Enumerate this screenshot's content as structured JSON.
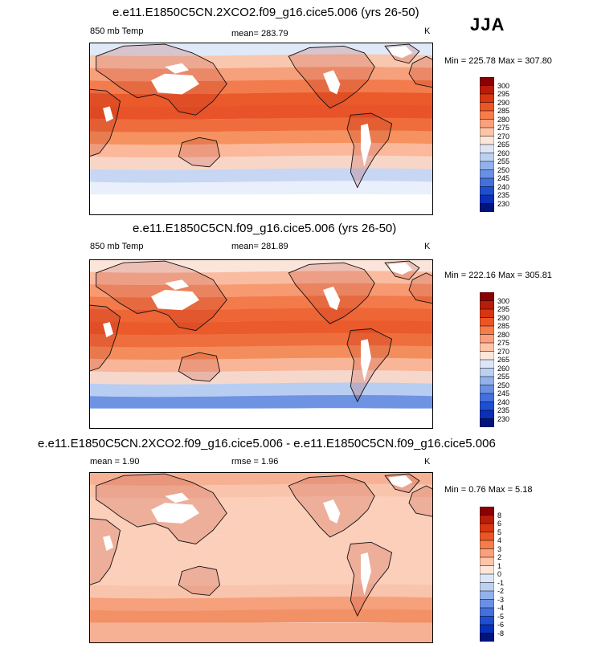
{
  "season": "JJA",
  "panels": [
    {
      "title": "e.e11.E1850C5CN.2XCO2.f09_g16.cice5.006 (yrs 26-50)",
      "left_label": "850 mb Temp",
      "center_label": "mean= 283.79",
      "right_label": "K",
      "minmax": "Min = 225.78 Max = 307.80",
      "colorbar_labels": [
        "300",
        "295",
        "290",
        "285",
        "280",
        "275",
        "270",
        "265",
        "260",
        "255",
        "250",
        "245",
        "240",
        "235",
        "230"
      ],
      "colorbar_colors": [
        "#8b0000",
        "#b81d0a",
        "#d83512",
        "#ec5524",
        "#f67d4a",
        "#fba07c",
        "#fdc4a8",
        "#fde6d8",
        "#dde6f7",
        "#bcd0f2",
        "#93b2ec",
        "#6a90e4",
        "#4470de",
        "#1f4fd1",
        "#0a2fb8",
        "#00147a"
      ],
      "bands": [
        "#e0e9f8",
        "#f9c7ae",
        "#f7a07c",
        "#f27c4d",
        "#ea5a2b",
        "#e8532a",
        "#ef6d3c",
        "#f5925f",
        "#fbb89a",
        "#f7d6c8",
        "#c7d6f3",
        "#e9f0fb"
      ],
      "polar": "#ffffff"
    },
    {
      "title": "e.e11.E1850C5CN.f09_g16.cice5.006 (yrs 26-50)",
      "left_label": "850 mb Temp",
      "center_label": "mean= 281.89",
      "right_label": "K",
      "minmax": "Min = 222.16 Max = 305.81",
      "colorbar_labels": [
        "300",
        "295",
        "290",
        "285",
        "280",
        "275",
        "270",
        "265",
        "260",
        "255",
        "250",
        "245",
        "240",
        "235",
        "230"
      ],
      "colorbar_colors": [
        "#8b0000",
        "#b81d0a",
        "#d83512",
        "#ec5524",
        "#f67d4a",
        "#fba07c",
        "#fdc4a8",
        "#fde6d8",
        "#dde6f7",
        "#bcd0f2",
        "#93b2ec",
        "#6a90e4",
        "#4470de",
        "#1f4fd1",
        "#0a2fb8",
        "#00147a"
      ],
      "bands": [
        "#fbe5db",
        "#fabca0",
        "#f79a72",
        "#f27a4b",
        "#ee6536",
        "#ea5a2b",
        "#ef6e3e",
        "#f38e5c",
        "#f9b597",
        "#f6d7cb",
        "#b8cdf2",
        "#6f93e3"
      ],
      "polar": "#ffffff"
    },
    {
      "title": "e.e11.E1850C5CN.2XCO2.f09_g16.cice5.006 - e.e11.E1850C5CN.f09_g16.cice5.006",
      "left_label": "mean =   1.90",
      "center_label": "rmse =   1.96",
      "right_label": "K",
      "minmax": "Min =  0.76 Max =  5.18",
      "colorbar_labels": [
        "8",
        "6",
        "5",
        "4",
        "3",
        "2",
        "1",
        "0",
        "-1",
        "-2",
        "-3",
        "-4",
        "-5",
        "-6",
        "-8"
      ],
      "colorbar_colors": [
        "#8b0000",
        "#b81d0a",
        "#d83512",
        "#ec5524",
        "#f67d4a",
        "#fba07c",
        "#fdc4a8",
        "#fde6d8",
        "#dde6f7",
        "#bcd0f2",
        "#93b2ec",
        "#6a90e4",
        "#4470de",
        "#1f4fd1",
        "#0a2fb8",
        "#00147a"
      ],
      "bands": [
        "#f6b195",
        "#f9c4ac",
        "#fbcfba",
        "#fbcfba",
        "#fbcfba",
        "#fbcfba",
        "#fbcfba",
        "#fbcfba",
        "#fbcfba",
        "#f9c4ac",
        "#f6a07c",
        "#f29066"
      ],
      "polar": "#f6b195"
    }
  ]
}
